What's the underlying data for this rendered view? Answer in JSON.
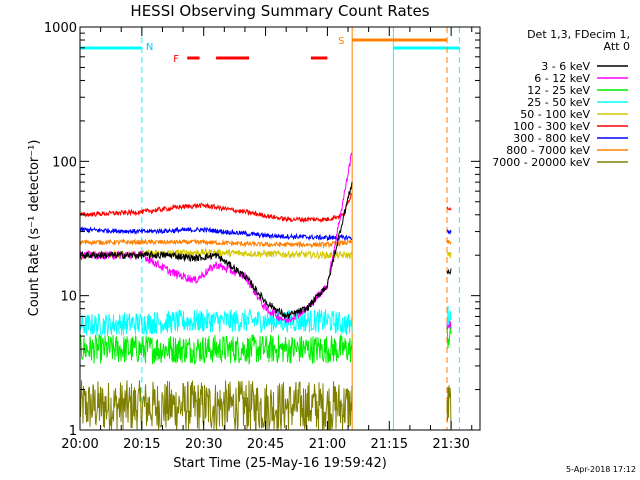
{
  "chart_data": {
    "type": "line",
    "title": "HESSI Observing Summary Count Rates",
    "xlabel": "Start Time (25-May-16 19:59:42)",
    "ylabel": "Count Rate (s⁻¹ detector⁻¹)",
    "yscale": "log",
    "xlim": [
      "20:00",
      "21:37"
    ],
    "ylim": [
      1,
      1000
    ],
    "x_ticks": [
      "20:00",
      "20:15",
      "20:30",
      "20:45",
      "21:00",
      "21:15",
      "21:30"
    ],
    "y_ticks": [
      "1",
      "10",
      "100",
      "1000"
    ],
    "legend_title_line1": "Det 1,3, FDecim 1,",
    "legend_title_line2": "Att 0",
    "legend_position": "top-right",
    "date_stamp": "5-Apr-2018 17:12",
    "series": [
      {
        "name": "3 - 6 keV",
        "color": "#000000",
        "x": [
          "20:00",
          "20:15",
          "20:22",
          "20:28",
          "20:33",
          "20:40",
          "20:45",
          "20:50",
          "20:55",
          "21:00",
          "21:04",
          "21:06"
        ],
        "values": [
          20,
          20,
          20,
          19,
          20,
          14,
          9,
          7,
          8,
          12,
          40,
          70
        ]
      },
      {
        "name": "6 - 12 keV",
        "color": "#ff00ff",
        "x": [
          "20:00",
          "20:15",
          "20:22",
          "20:28",
          "20:33",
          "20:40",
          "20:45",
          "20:50",
          "20:55",
          "21:00",
          "21:04",
          "21:06"
        ],
        "values": [
          20,
          20,
          15,
          13,
          17,
          14,
          8,
          6.5,
          8,
          12,
          55,
          120
        ]
      },
      {
        "name": "12 - 25 keV",
        "color": "#00ee00",
        "x": [
          "20:00",
          "20:30",
          "21:00",
          "21:06"
        ],
        "values": [
          4,
          4,
          4,
          4
        ]
      },
      {
        "name": "25 - 50 keV",
        "color": "#00ffff",
        "x": [
          "20:00",
          "20:30",
          "21:00",
          "21:06"
        ],
        "values": [
          6,
          6.5,
          6.5,
          6
        ]
      },
      {
        "name": "50 - 100 keV",
        "color": "#d4c800",
        "x": [
          "20:00",
          "20:30",
          "21:00",
          "21:06"
        ],
        "values": [
          20,
          21,
          20,
          20
        ]
      },
      {
        "name": "100 - 300 keV",
        "color": "#ff0000",
        "x": [
          "20:00",
          "20:15",
          "20:25",
          "20:30",
          "20:40",
          "20:50",
          "21:00",
          "21:04",
          "21:06"
        ],
        "values": [
          40,
          42,
          46,
          47,
          42,
          37,
          37,
          40,
          60
        ]
      },
      {
        "name": "300 - 800 keV",
        "color": "#0000ff",
        "x": [
          "20:00",
          "20:15",
          "20:30",
          "20:45",
          "21:00",
          "21:06"
        ],
        "values": [
          31,
          30,
          31,
          28,
          27,
          27
        ]
      },
      {
        "name": "800 - 7000 keV",
        "color": "#ff8000",
        "x": [
          "20:00",
          "20:15",
          "20:30",
          "20:45",
          "21:00",
          "21:06"
        ],
        "values": [
          25,
          25,
          25,
          24,
          24,
          25
        ]
      },
      {
        "name": "7000 - 20000 keV",
        "color": "#808000",
        "x": [
          "20:00",
          "20:30",
          "21:00",
          "21:06"
        ],
        "values": [
          1.5,
          1.5,
          1.5,
          1.5
        ]
      }
    ],
    "post_gap_segment": {
      "x": [
        "21:29",
        "21:30"
      ],
      "values": {
        "3 - 6 keV": [
          15,
          15
        ],
        "6 - 12 keV": [
          6,
          5
        ],
        "100 - 300 keV": [
          45,
          45
        ],
        "300 - 800 keV": [
          30,
          30
        ],
        "800 - 7000 keV": [
          25,
          25
        ],
        "50 - 100 keV": [
          20,
          20
        ],
        "25 - 50 keV": [
          7,
          7
        ],
        "12 - 25 keV": [
          5,
          5
        ],
        "7000 - 20000 keV": [
          1.5,
          1.5
        ]
      }
    },
    "annotations": {
      "night_letter": "N",
      "flare_letter": "F",
      "saa_letter": "S",
      "night_intervals": [
        [
          "20:00",
          "20:15"
        ],
        [
          "21:16",
          "21:32"
        ]
      ],
      "flare_intervals": [
        [
          "20:26",
          "20:29"
        ],
        [
          "20:33",
          "20:41"
        ],
        [
          "20:56",
          "21:00"
        ]
      ],
      "saa_intervals": [
        [
          "21:06",
          "21:29"
        ]
      ]
    }
  }
}
